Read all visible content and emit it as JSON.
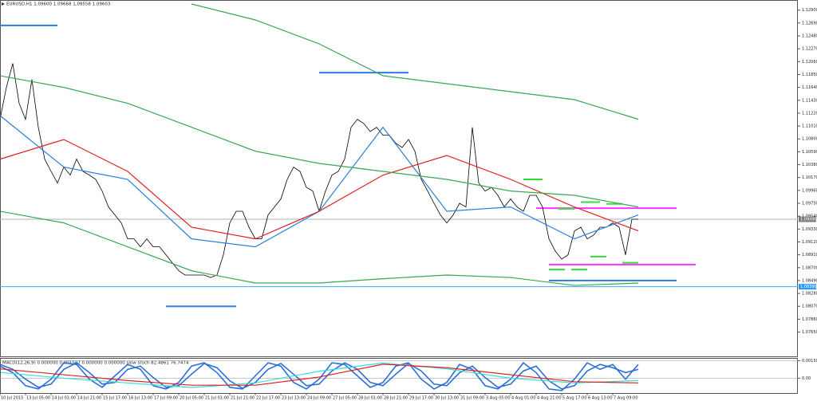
{
  "chart_data": [
    {
      "type": "line",
      "title": "EURUSD,H1  1.09600 1.09668 1.09558 1.09603",
      "x": [
        0,
        1,
        2,
        3,
        4,
        5,
        6,
        7,
        8,
        9,
        10,
        11,
        12,
        13,
        14,
        15,
        16,
        17,
        18,
        19,
        20,
        21,
        22,
        23,
        24,
        25,
        26,
        27,
        28,
        29,
        30,
        31,
        32,
        33,
        34,
        35,
        36,
        37,
        38,
        39,
        40,
        41,
        42,
        43,
        44,
        45,
        46,
        47,
        48,
        49,
        50,
        51,
        52,
        53,
        54,
        55,
        56,
        57,
        58,
        59,
        60,
        61,
        62,
        63,
        64,
        65,
        66,
        67,
        68,
        69,
        70,
        71,
        72,
        73,
        74,
        75,
        76,
        77,
        78,
        79,
        80,
        81,
        82,
        83,
        84,
        85,
        86,
        87,
        88,
        89,
        90,
        91,
        92,
        93,
        94,
        95,
        96,
        97,
        98,
        99,
        100
      ],
      "xlim": [
        0,
        125
      ],
      "xticks": [
        {
          "value": 0,
          "label": "10 Jul 2015"
        },
        {
          "value": 4,
          "label": "13 Jul 05:00"
        },
        {
          "value": 8,
          "label": "14 Jul 01:00"
        },
        {
          "value": 12,
          "label": "14 Jul 21:00"
        },
        {
          "value": 16,
          "label": "15 Jul 17:00"
        },
        {
          "value": 20,
          "label": "16 Jul 13:00"
        },
        {
          "value": 24,
          "label": "17 Jul 09:00"
        },
        {
          "value": 28,
          "label": "20 Jul 05:00"
        },
        {
          "value": 32,
          "label": "21 Jul 01:00"
        },
        {
          "value": 36,
          "label": "21 Jul 21:00"
        },
        {
          "value": 40,
          "label": "22 Jul 17:00"
        },
        {
          "value": 44,
          "label": "23 Jul 13:00"
        },
        {
          "value": 48,
          "label": "24 Jul 09:00"
        },
        {
          "value": 52,
          "label": "27 Jul 05:00"
        },
        {
          "value": 56,
          "label": "28 Jul 01:00"
        },
        {
          "value": 60,
          "label": "28 Jul 21:00"
        },
        {
          "value": 64,
          "label": "29 Jul 17:00"
        },
        {
          "value": 68,
          "label": "30 Jul 13:00"
        },
        {
          "value": 72,
          "label": "31 Jul 09:00"
        },
        {
          "value": 76,
          "label": "3 Aug 05:00"
        },
        {
          "value": 80,
          "label": "4 Aug 01:00"
        },
        {
          "value": 84,
          "label": "4 Aug 21:00"
        },
        {
          "value": 88,
          "label": "5 Aug 17:00"
        },
        {
          "value": 92,
          "label": "6 Aug 13:00"
        },
        {
          "value": 96,
          "label": "7 Aug 09:00"
        }
      ],
      "ylim": [
        1.07475,
        1.13
      ],
      "yticks": [
        {
          "value": 1.0765,
          "label": "1.07650"
        },
        {
          "value": 1.0786,
          "label": "1.07860"
        },
        {
          "value": 1.0807,
          "label": "1.08070"
        },
        {
          "value": 1.0828,
          "label": "1.08280"
        },
        {
          "value": 1.0849,
          "label": "1.08490"
        },
        {
          "value": 1.087,
          "label": "1.08700"
        },
        {
          "value": 1.0891,
          "label": "1.08910"
        },
        {
          "value": 1.0912,
          "label": "1.09120"
        },
        {
          "value": 1.0933,
          "label": "1.09330"
        },
        {
          "value": 1.0954,
          "label": "1.09540"
        },
        {
          "value": 1.0975,
          "label": "1.09750"
        },
        {
          "value": 1.0996,
          "label": "1.09960"
        },
        {
          "value": 1.1017,
          "label": "1.10170"
        },
        {
          "value": 1.1038,
          "label": "1.10380"
        },
        {
          "value": 1.1059,
          "label": "1.10590"
        },
        {
          "value": 1.108,
          "label": "1.10800"
        },
        {
          "value": 1.1101,
          "label": "1.11010"
        },
        {
          "value": 1.1122,
          "label": "1.11220"
        },
        {
          "value": 1.1143,
          "label": "1.11430"
        },
        {
          "value": 1.1164,
          "label": "1.11640"
        },
        {
          "value": 1.1185,
          "label": "1.11850"
        },
        {
          "value": 1.1206,
          "label": "1.12060"
        },
        {
          "value": 1.1227,
          "label": "1.12270"
        },
        {
          "value": 1.1248,
          "label": "1.12480"
        },
        {
          "value": 1.1269,
          "label": "1.12690"
        },
        {
          "value": 1.129,
          "label": "1.12900"
        }
      ],
      "series": [
        {
          "color": "#000000",
          "values": [
            1.1112,
            1.1164,
            1.1203,
            1.1138,
            1.1112,
            1.1177,
            1.1099,
            1.1047,
            1.1027,
            1.1008,
            1.1034,
            1.1021,
            1.1047,
            1.1027,
            1.1021,
            1.1014,
            1.0995,
            1.0969,
            1.0956,
            1.0943,
            1.0917,
            1.0917,
            1.0904,
            1.0917,
            1.0904,
            1.0904,
            1.0891,
            1.0878,
            1.0865,
            1.0858,
            1.0858,
            1.0858,
            1.0858,
            1.0854,
            1.0858,
            1.0891,
            1.0943,
            1.0962,
            1.0962,
            1.0936,
            1.0917,
            1.0917,
            1.0956,
            1.0969,
            1.0982,
            1.1014,
            1.1034,
            1.1027,
            1.1001,
            1.0995,
            1.0962,
            1.0995,
            1.1021,
            1.1027,
            1.1047,
            1.1099,
            1.1112,
            1.1105,
            1.1092,
            1.1099,
            1.1086,
            1.1086,
            1.1073,
            1.1066,
            1.1079,
            1.106,
            1.1014,
            1.0995,
            1.0975,
            1.0956,
            1.0943,
            1.0956,
            1.0975,
            1.0969,
            1.1099,
            1.1008,
            1.0995,
            1.1001,
            1.0988,
            1.0969,
            1.0982,
            1.0969,
            1.0962,
            1.0988,
            1.0988,
            1.0969,
            1.0917,
            1.0897,
            1.0884,
            1.0891,
            1.093,
            1.0936,
            1.0917,
            1.0923,
            1.0936,
            1.0936,
            1.0943,
            1.0936,
            1.0891,
            1.0949,
            1.0949
          ]
        },
        {
          "color": "#2b7fd9",
          "x": [
            0,
            10,
            20,
            30,
            40,
            50,
            60,
            70,
            80,
            90,
            100
          ],
          "values": [
            1.1118,
            1.1034,
            1.1014,
            1.0917,
            1.0904,
            1.0962,
            1.1099,
            1.0962,
            1.0969,
            1.0917,
            1.0956
          ]
        },
        {
          "color": "#e02020",
          "x": [
            0,
            10,
            20,
            30,
            40,
            50,
            60,
            70,
            80,
            90,
            100
          ],
          "values": [
            1.1047,
            1.1079,
            1.1027,
            1.0936,
            1.0917,
            1.0962,
            1.1021,
            1.1053,
            1.1014,
            1.0969,
            1.093
          ]
        },
        {
          "color": "#3aa655",
          "x": [
            30,
            40,
            50,
            60,
            70,
            80,
            90,
            100
          ],
          "values": [
            1.13,
            1.1274,
            1.1235,
            1.1183,
            1.117,
            1.1157,
            1.1144,
            1.1112
          ]
        },
        {
          "color": "#3aa655",
          "x": [
            0,
            10,
            20,
            30,
            40,
            50,
            60,
            70,
            80,
            90,
            100
          ],
          "values": [
            1.1183,
            1.1164,
            1.1138,
            1.1099,
            1.106,
            1.104,
            1.1027,
            1.1014,
            1.0995,
            1.0988,
            1.0969
          ]
        },
        {
          "color": "#3aa655",
          "x": [
            0,
            10,
            20,
            30,
            40,
            50,
            60,
            70,
            80,
            90,
            100
          ],
          "values": [
            1.0962,
            1.0943,
            1.0904,
            1.0865,
            1.0845,
            1.0845,
            1.0852,
            1.0858,
            1.0854,
            1.0841,
            1.0845
          ]
        }
      ],
      "levels": [
        {
          "value": 1.0839,
          "from": 0,
          "to": 125,
          "color": "#33aaff"
        },
        {
          "value": 1.0949,
          "from": 0,
          "to": 125,
          "color": "#b0b0b0"
        },
        {
          "value": 1.1265,
          "from": 0,
          "to": 9,
          "color": "#2b7fd9"
        },
        {
          "value": 1.1188,
          "from": 50,
          "to": 64,
          "color": "#2b7fd9"
        },
        {
          "value": 1.0807,
          "from": 26,
          "to": 37,
          "color": "#2b7fd9"
        },
        {
          "value": 1.0849,
          "from": 86,
          "to": 106,
          "color": "#2b7fd9"
        },
        {
          "value": 1.0967,
          "from": 84,
          "to": 106,
          "color": "#ff33ff"
        },
        {
          "value": 1.0875,
          "from": 86,
          "to": 109,
          "color": "#ff33ff"
        },
        {
          "value": 1.1014,
          "from": 82,
          "to": 85,
          "color": "#33dd33"
        },
        {
          "value": 1.0966,
          "from": 87.5,
          "to": 90,
          "color": "#33dd33"
        },
        {
          "value": 1.0977,
          "from": 91,
          "to": 94,
          "color": "#33dd33"
        },
        {
          "value": 1.0974,
          "from": 95,
          "to": 97.5,
          "color": "#33dd33"
        },
        {
          "value": 1.0867,
          "from": 86,
          "to": 88.5,
          "color": "#33dd33"
        },
        {
          "value": 1.0867,
          "from": 89.5,
          "to": 92,
          "color": "#33dd33"
        },
        {
          "value": 1.0888,
          "from": 92.5,
          "to": 95,
          "color": "#33dd33"
        },
        {
          "value": 1.0878,
          "from": 97.5,
          "to": 100,
          "color": "#33dd33"
        }
      ],
      "price_tags": [
        {
          "value": 1.0949,
          "label": "1.09490",
          "color": "#7a7a7a"
        },
        {
          "value": 1.0839,
          "label": "1.08390",
          "color": "#2b9bff"
        }
      ]
    },
    {
      "type": "line",
      "title": "MACD(12,26,9) 0.000000 0.001597 0.000000 0.000000  slow stoch 82.4861 76.7474",
      "x": [
        0,
        2,
        4,
        6,
        8,
        10,
        12,
        14,
        16,
        18,
        20,
        22,
        24,
        26,
        28,
        30,
        32,
        34,
        36,
        38,
        40,
        42,
        44,
        46,
        48,
        50,
        52,
        54,
        56,
        58,
        60,
        62,
        64,
        66,
        68,
        70,
        72,
        74,
        76,
        78,
        80,
        82,
        84,
        86,
        88,
        90,
        92,
        94,
        96,
        98,
        100
      ],
      "xlim": [
        0,
        125
      ],
      "ylim": [
        -0.0012,
        0.0016
      ],
      "yticks": [
        {
          "value": 0.0015,
          "label": "0.001500"
        },
        {
          "value": 0,
          "label": "0.00"
        }
      ],
      "y2lim": [
        0,
        100
      ],
      "series": [
        {
          "color": "#2b6fd6",
          "axis": "y2",
          "values": [
            80,
            60,
            20,
            10,
            40,
            90,
            85,
            40,
            15,
            50,
            85,
            70,
            20,
            10,
            30,
            80,
            90,
            60,
            15,
            10,
            50,
            90,
            80,
            30,
            10,
            40,
            90,
            85,
            50,
            15,
            30,
            80,
            90,
            40,
            10,
            30,
            85,
            70,
            20,
            10,
            40,
            90,
            60,
            10,
            5,
            40,
            90,
            70,
            85,
            40,
            85
          ]
        },
        {
          "color": "#2b6fd6",
          "axis": "y2",
          "values": [
            85,
            70,
            40,
            15,
            25,
            70,
            90,
            60,
            25,
            30,
            70,
            80,
            45,
            15,
            20,
            55,
            88,
            75,
            35,
            12,
            30,
            70,
            88,
            55,
            20,
            25,
            65,
            90,
            70,
            30,
            20,
            55,
            88,
            65,
            25,
            20,
            60,
            80,
            45,
            15,
            25,
            65,
            80,
            35,
            10,
            20,
            65,
            85,
            75,
            60,
            70
          ]
        },
        {
          "color": "#33dddd",
          "x": [
            0,
            10,
            20,
            30,
            40,
            50,
            60,
            70,
            80,
            90,
            100
          ],
          "values": [
            0.0005,
            0,
            -0.0004,
            -0.0008,
            -0.0004,
            0.0006,
            0.0013,
            0.0008,
            0,
            -0.0004,
            -0.0002
          ]
        },
        {
          "color": "#e02020",
          "x": [
            0,
            10,
            20,
            30,
            40,
            50,
            60,
            70,
            80,
            90,
            100
          ],
          "values": [
            0.0008,
            0.0003,
            -0.0002,
            -0.0006,
            -0.0006,
            0.0001,
            0.0012,
            0.0009,
            0.0003,
            -0.0003,
            -0.0004
          ]
        }
      ]
    }
  ]
}
